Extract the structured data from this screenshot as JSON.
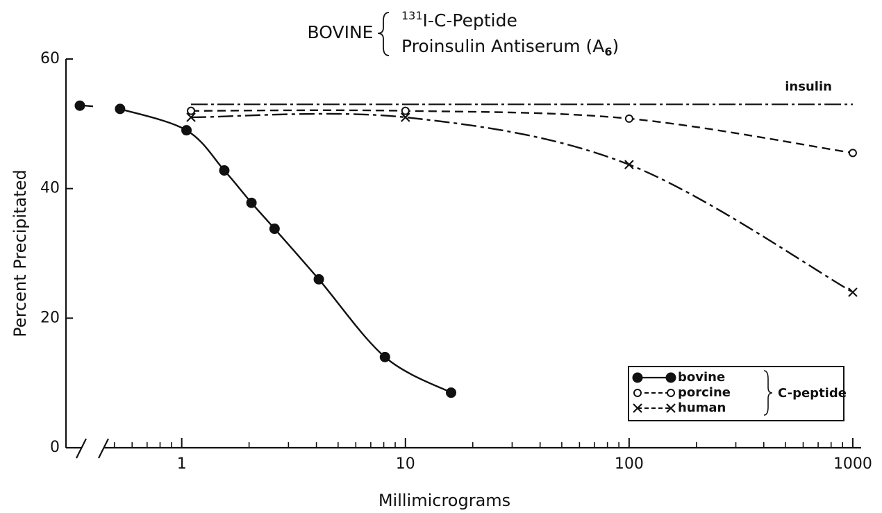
{
  "chart_data": {
    "type": "line",
    "title": "BOVINE",
    "subtitle": [
      {
        "sup": "131",
        "text": "I-C-Peptide"
      },
      {
        "text": "Proinsulin Antiserum (A",
        "sub": "6",
        "end": ")"
      }
    ],
    "x_label": "Millimicrograms",
    "y_label": "Percent Precipitated",
    "log_x": true,
    "xlim": [
      0.45,
      1090
    ],
    "xticks": [
      1,
      10,
      100,
      1000
    ],
    "xminorticks": [
      0.5,
      0.6,
      0.7,
      0.8,
      0.9,
      2,
      3,
      4,
      5,
      6,
      7,
      8,
      9,
      20,
      30,
      40,
      50,
      60,
      70,
      80,
      90,
      200,
      300,
      400,
      500,
      600,
      700,
      800,
      900
    ],
    "ylim": [
      0,
      60
    ],
    "yticks": [
      0,
      20,
      40,
      60
    ],
    "zero_dose_value": 52.8,
    "series": [
      {
        "name": "bovine",
        "marker": "filled",
        "dash": "",
        "x": [
          0.53,
          1.05,
          1.55,
          2.05,
          2.6,
          4.1,
          8.1,
          16
        ],
        "values": [
          52.3,
          49,
          42.8,
          37.8,
          33.8,
          26,
          14,
          8.5
        ]
      },
      {
        "name": "porcine",
        "marker": "open",
        "dash": "12 7",
        "x": [
          1.1,
          10,
          100,
          1000
        ],
        "values": [
          52,
          52,
          50.8,
          45.5
        ]
      },
      {
        "name": "human",
        "marker": "x",
        "dash": "22 6 5 6",
        "x": [
          1.1,
          10,
          100,
          1000
        ],
        "values": [
          51,
          51,
          43.7,
          24
        ]
      }
    ],
    "insulin": {
      "label": "insulin",
      "dash": "24 5 4 5",
      "x": [
        1.1,
        1000
      ],
      "values": [
        53,
        53
      ]
    },
    "legend_group": "C-peptide",
    "legend": "lower right"
  }
}
